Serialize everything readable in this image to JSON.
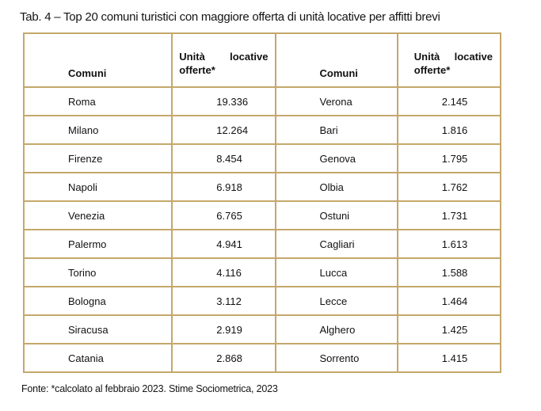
{
  "title": "Tab. 4 – Top 20 comuni turistici con maggiore offerta di unità locative per affitti brevi",
  "table": {
    "headers": {
      "comuni": "Comuni",
      "units_line1_word1": "Unità",
      "units_line1_word2": "locative",
      "units_line2": "offerte*"
    },
    "colors": {
      "border": "#c4a86b"
    },
    "rows": [
      {
        "left_city": "Roma",
        "left_units": "19.336",
        "right_city": "Verona",
        "right_units": "2.145"
      },
      {
        "left_city": "Milano",
        "left_units": "12.264",
        "right_city": "Bari",
        "right_units": "1.816"
      },
      {
        "left_city": "Firenze",
        "left_units": "8.454",
        "right_city": "Genova",
        "right_units": "1.795"
      },
      {
        "left_city": "Napoli",
        "left_units": "6.918",
        "right_city": "Olbia",
        "right_units": "1.762"
      },
      {
        "left_city": "Venezia",
        "left_units": "6.765",
        "right_city": "Ostuni",
        "right_units": "1.731"
      },
      {
        "left_city": "Palermo",
        "left_units": "4.941",
        "right_city": "Cagliari",
        "right_units": "1.613"
      },
      {
        "left_city": "Torino",
        "left_units": "4.116",
        "right_city": "Lucca",
        "right_units": "1.588"
      },
      {
        "left_city": "Bologna",
        "left_units": "3.112",
        "right_city": "Lecce",
        "right_units": "1.464"
      },
      {
        "left_city": "Siracusa",
        "left_units": "2.919",
        "right_city": "Alghero",
        "right_units": "1.425"
      },
      {
        "left_city": "Catania",
        "left_units": "2.868",
        "right_city": "Sorrento",
        "right_units": "1.415"
      }
    ]
  },
  "footer": "Fonte: *calcolato al febbraio 2023. Stime Sociometrica, 2023"
}
